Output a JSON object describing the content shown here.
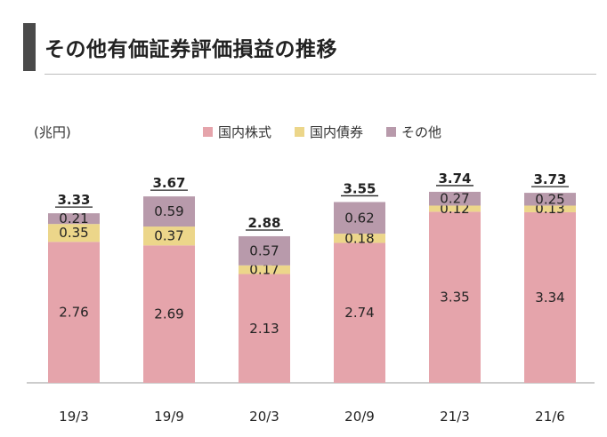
{
  "header": {
    "title": "その他有価証券評価損益の推移"
  },
  "chart_data": {
    "type": "bar",
    "stacked": true,
    "unit_label": "(兆円)",
    "categories": [
      "19/3",
      "19/9",
      "20/3",
      "20/9",
      "21/3",
      "21/6"
    ],
    "series": [
      {
        "name": "国内株式",
        "color": "#e5a4ab",
        "values": [
          2.76,
          2.69,
          2.13,
          2.74,
          3.35,
          3.34
        ]
      },
      {
        "name": "国内債券",
        "color": "#ecd68a",
        "values": [
          0.35,
          0.37,
          0.17,
          0.18,
          0.12,
          0.13
        ]
      },
      {
        "name": "その他",
        "color": "#b89aab",
        "values": [
          0.21,
          0.59,
          0.57,
          0.62,
          0.27,
          0.25
        ]
      }
    ],
    "totals": [
      3.33,
      3.67,
      2.88,
      3.55,
      3.74,
      3.73
    ],
    "legend_position": "top",
    "grid": false,
    "ylim": [
      0,
      4.3
    ]
  }
}
